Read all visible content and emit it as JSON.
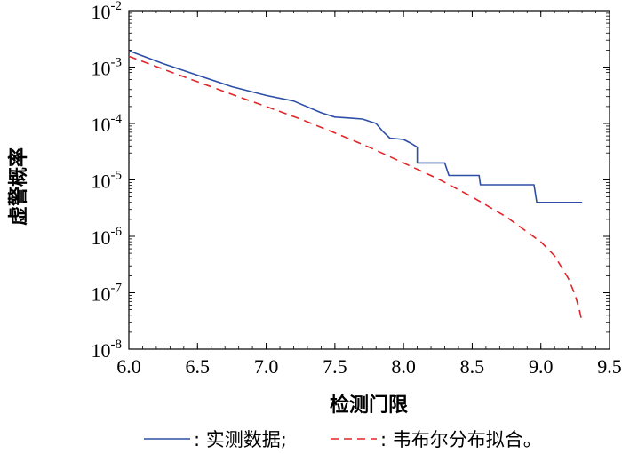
{
  "chart_data": {
    "type": "line",
    "xlabel": "检测门限",
    "ylabel": "虚警概率",
    "xlim": [
      6.0,
      9.5
    ],
    "ylim": [
      1e-08,
      0.01
    ],
    "yscale": "log",
    "x_ticks": [
      "6.0",
      "6.5",
      "7.0",
      "7.5",
      "8.0",
      "8.5",
      "9.0",
      "9.5"
    ],
    "y_tick_exponents": [
      "-8",
      "-7",
      "-6",
      "-5",
      "-4",
      "-3",
      "-2"
    ],
    "y_tick_base": "10",
    "grid": false,
    "legend_position": "bottom",
    "series": [
      {
        "name": ": 实测数据;",
        "color": "#2d4ea6",
        "style": "solid",
        "points": [
          [
            6.0,
            0.00195
          ],
          [
            6.25,
            0.00115
          ],
          [
            6.5,
            0.00072
          ],
          [
            6.75,
            0.00045
          ],
          [
            7.0,
            0.000315
          ],
          [
            7.2,
            0.00025
          ],
          [
            7.4,
            0.000155
          ],
          [
            7.5,
            0.00013
          ],
          [
            7.6,
            0.000125
          ],
          [
            7.7,
            0.00012
          ],
          [
            7.8,
            0.0001
          ],
          [
            7.85,
            7.2e-05
          ],
          [
            7.9,
            5.5e-05
          ],
          [
            8.0,
            5.2e-05
          ],
          [
            8.05,
            4.5e-05
          ],
          [
            8.1,
            3.8e-05
          ],
          [
            8.1,
            2e-05
          ],
          [
            8.3,
            2e-05
          ],
          [
            8.33,
            1.2e-05
          ],
          [
            8.55,
            1.2e-05
          ],
          [
            8.56,
            8.2e-06
          ],
          [
            8.95,
            8.2e-06
          ],
          [
            8.97,
            4e-06
          ],
          [
            9.3,
            4e-06
          ]
        ]
      },
      {
        "name": ": 韦布尔分布拟合。",
        "color": "#e0262a",
        "style": "dashed",
        "points": [
          [
            6.0,
            0.00155
          ],
          [
            6.25,
            0.00092
          ],
          [
            6.5,
            0.00055
          ],
          [
            6.75,
            0.00033
          ],
          [
            7.0,
            0.0002
          ],
          [
            7.25,
            0.00012
          ],
          [
            7.5,
            6.8e-05
          ],
          [
            7.75,
            3.8e-05
          ],
          [
            8.0,
            2e-05
          ],
          [
            8.25,
            1.05e-05
          ],
          [
            8.5,
            5e-06
          ],
          [
            8.75,
            2.2e-06
          ],
          [
            9.0,
            8e-07
          ],
          [
            9.1,
            4.5e-07
          ],
          [
            9.2,
            1.8e-07
          ],
          [
            9.25,
            9e-08
          ],
          [
            9.28,
            5e-08
          ],
          [
            9.3,
            3e-08
          ]
        ]
      }
    ]
  }
}
